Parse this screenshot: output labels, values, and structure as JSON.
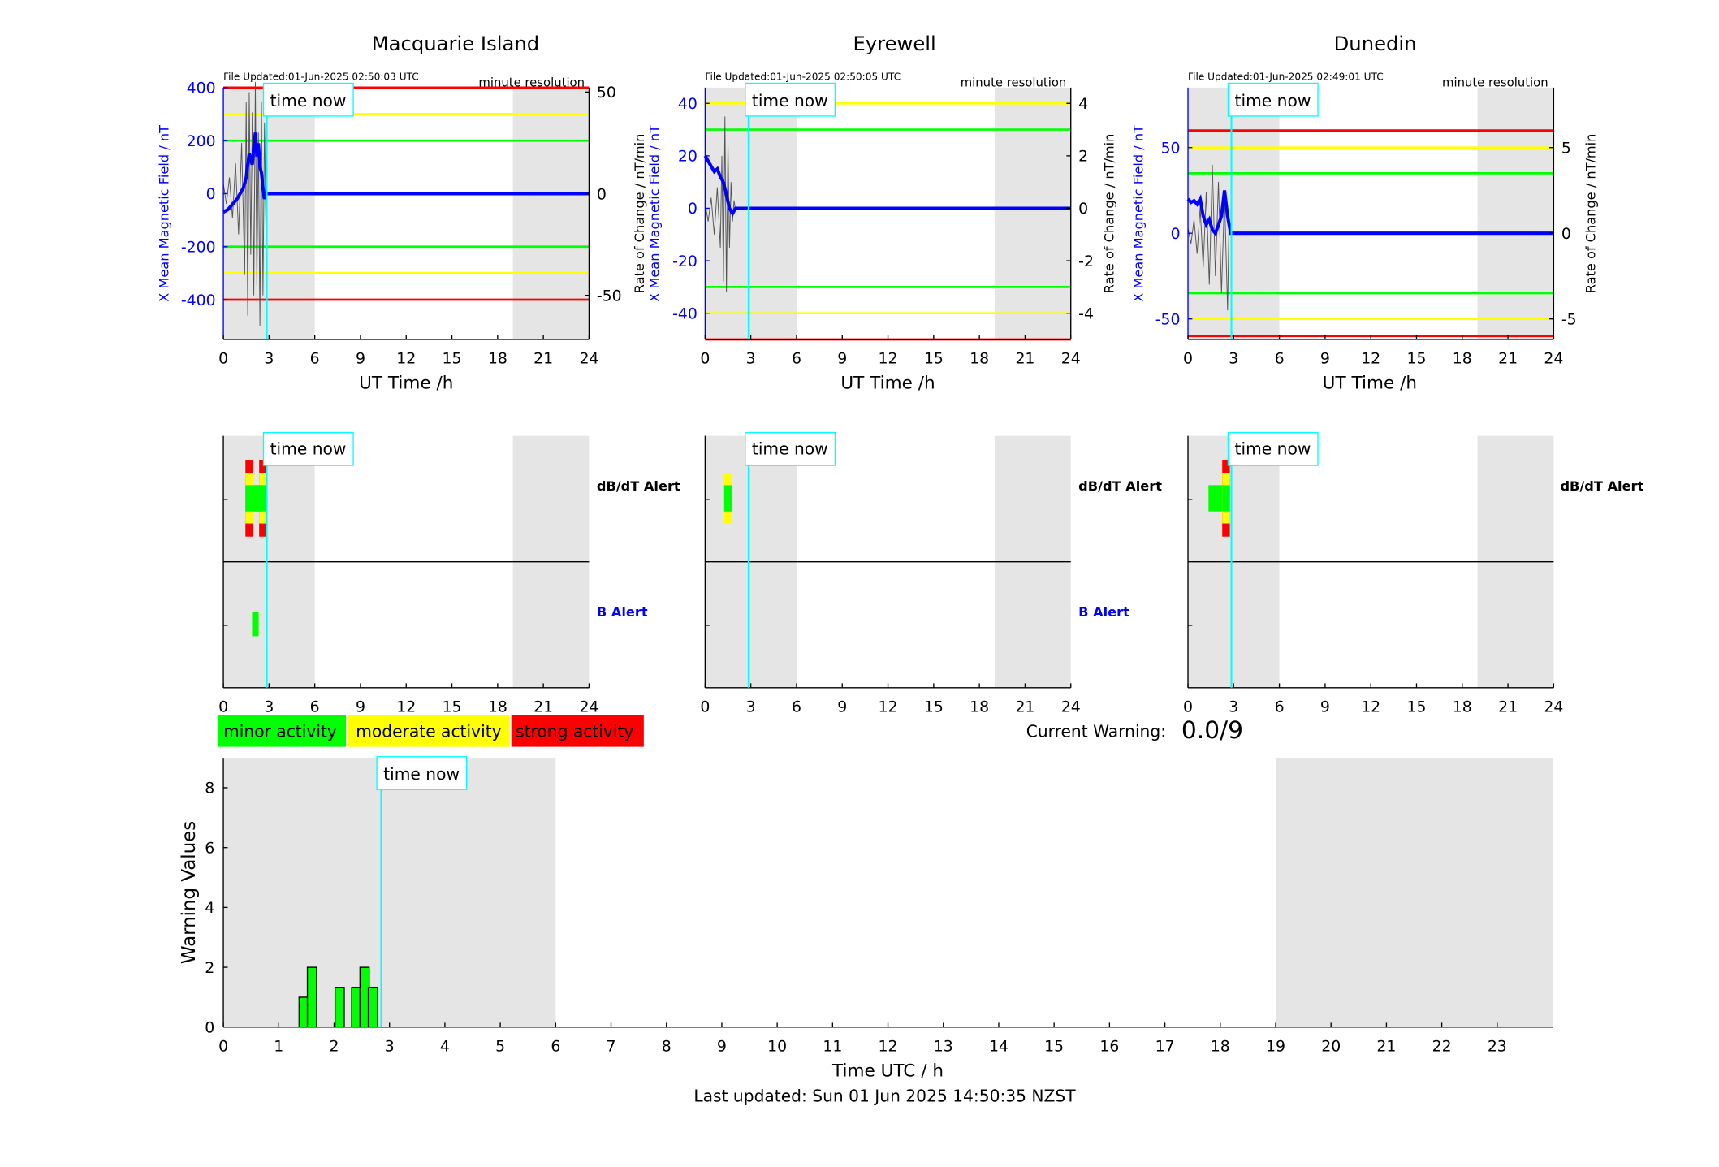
{
  "common": {
    "time_now_label": "time now",
    "resolution_label": "minute resolution",
    "x_axis_label": "UT Time /h",
    "left_axis_label": "X Mean Magnetic Field / nT",
    "right_axis_label": "Rate of Change / nT/min",
    "dbdt_alert_label": "dB/dT Alert",
    "b_alert_label": "B Alert",
    "x_ticks": [
      "0",
      "3",
      "6",
      "9",
      "12",
      "15",
      "18",
      "21",
      "24"
    ],
    "now_hour": 2.85,
    "shade_ranges": [
      [
        0,
        6
      ],
      [
        19,
        24
      ]
    ]
  },
  "stations": [
    {
      "title": "Macquarie Island",
      "file_updated": "File Updated:01-Jun-2025 02:50:03 UTC",
      "y_ticks_left": [
        "400",
        "200",
        "0",
        "-200",
        "-400"
      ],
      "y_ticks_right": [
        "50",
        "0",
        "-50"
      ],
      "chart_data": {
        "type": "line",
        "xlim": [
          0,
          24
        ],
        "ylim": [
          -550,
          400
        ],
        "ylim_right": [
          -71.7,
          52.2
        ],
        "threshold_lines": {
          "red": 400,
          "yellow": 300,
          "green": 200
        },
        "series": [
          {
            "x": [
              0,
              0.3,
              0.6,
              0.9,
              1.1,
              1.3,
              1.5,
              1.6,
              1.7,
              1.8,
              1.9,
              2.0,
              2.1,
              2.2,
              2.3,
              2.4,
              2.5,
              2.6,
              2.7,
              2.8,
              24
            ],
            "y": [
              -70,
              -60,
              -40,
              -20,
              0,
              20,
              60,
              110,
              150,
              130,
              110,
              180,
              230,
              140,
              190,
              100,
              80,
              20,
              -20,
              0,
              0
            ]
          },
          {
            "x": [
              0,
              0.2,
              0.4,
              0.6,
              0.8,
              1.0,
              1.2,
              1.4,
              1.5,
              1.6,
              1.7,
              1.8,
              1.9,
              2.0,
              2.1,
              2.2,
              2.3,
              2.4,
              2.5,
              2.6,
              2.7,
              2.8
            ],
            "y": [
              5,
              -5,
              8,
              -12,
              15,
              -20,
              25,
              -40,
              45,
              -60,
              50,
              -30,
              40,
              -50,
              55,
              -45,
              30,
              -65,
              45,
              -50,
              35,
              -20
            ]
          }
        ]
      },
      "alerts": {
        "dbdt": [
          {
            "hour": 1.7,
            "level": 3
          },
          {
            "hour": 2.6,
            "level": 3
          },
          {
            "hour": 2.1,
            "level": 1
          },
          {
            "hour": 2.3,
            "level": 1
          }
        ],
        "b": [
          {
            "hour": 2.1,
            "level": 1
          }
        ]
      }
    },
    {
      "title": "Eyrewell",
      "file_updated": "File Updated:01-Jun-2025 02:50:05 UTC",
      "y_ticks_left": [
        "40",
        "20",
        "0",
        "-20",
        "-40"
      ],
      "y_ticks_right": [
        "4",
        "2",
        "0",
        "-2",
        "-4"
      ],
      "chart_data": {
        "type": "line",
        "xlim": [
          0,
          24
        ],
        "ylim": [
          -50,
          46
        ],
        "ylim_right": [
          -5,
          4.6
        ],
        "threshold_lines": {
          "red": 50,
          "yellow": 40,
          "green": 30
        },
        "series": [
          {
            "x": [
              0,
              0.2,
              0.4,
              0.6,
              0.8,
              1.0,
              1.2,
              1.4,
              1.6,
              1.8,
              2.0,
              24
            ],
            "y": [
              20,
              18,
              16,
              14,
              15,
              12,
              10,
              5,
              0,
              -2,
              0,
              0
            ]
          },
          {
            "x": [
              0,
              0.2,
              0.4,
              0.6,
              0.8,
              1.0,
              1.1,
              1.2,
              1.3,
              1.4,
              1.5,
              1.6,
              1.7,
              1.8,
              1.9,
              2.0
            ],
            "y": [
              0.2,
              -0.5,
              0.4,
              -1,
              0.8,
              -1.5,
              2,
              -2.8,
              3.5,
              -3.2,
              2.5,
              -1.5,
              1,
              -0.5,
              0.3,
              -0.1
            ]
          }
        ]
      },
      "alerts": {
        "dbdt": [
          {
            "hour": 1.5,
            "level": 2
          }
        ],
        "b": []
      }
    },
    {
      "title": "Dunedin",
      "file_updated": "File Updated:01-Jun-2025 02:49:01 UTC",
      "y_ticks_left": [
        "50",
        "0",
        "-50"
      ],
      "y_ticks_right": [
        "5",
        "0",
        "-5"
      ],
      "chart_data": {
        "type": "line",
        "xlim": [
          0,
          24
        ],
        "ylim": [
          -62,
          85
        ],
        "ylim_right": [
          -6.2,
          8.5
        ],
        "threshold_lines": {
          "red": 60,
          "yellow": 50,
          "green": 35
        },
        "series": [
          {
            "x": [
              0,
              0.2,
              0.4,
              0.6,
              0.8,
              1.0,
              1.2,
              1.4,
              1.6,
              1.8,
              2.0,
              2.2,
              2.4,
              2.6,
              2.8,
              24
            ],
            "y": [
              20,
              18,
              19,
              17,
              20,
              10,
              5,
              8,
              2,
              0,
              5,
              10,
              25,
              10,
              0,
              0
            ]
          },
          {
            "x": [
              0,
              0.2,
              0.4,
              0.6,
              0.8,
              1.0,
              1.2,
              1.4,
              1.6,
              1.8,
              2.0,
              2.2,
              2.4,
              2.6,
              2.7
            ],
            "y": [
              0.3,
              -0.6,
              0.8,
              -1.2,
              1.5,
              -2,
              2.4,
              -3,
              4,
              -2.5,
              3,
              -3.5,
              2.2,
              -4.5,
              1
            ]
          }
        ]
      },
      "alerts": {
        "dbdt": [
          {
            "hour": 1.6,
            "level": 1
          },
          {
            "hour": 2.0,
            "level": 1
          },
          {
            "hour": 2.5,
            "level": 3
          }
        ],
        "b": []
      }
    }
  ],
  "legend": [
    {
      "label": "minor activity",
      "color": "#00ff00"
    },
    {
      "label": "moderate activity",
      "color": "#ffff00"
    },
    {
      "label": "strong activity",
      "color": "#ff0000"
    }
  ],
  "current_warning": {
    "label": "Current Warning:",
    "value": "0.0/9"
  },
  "warning_chart": {
    "chart_data": {
      "type": "bar",
      "xlabel": "Time UTC / h",
      "ylabel": "Warning Values",
      "xlim": [
        0,
        24
      ],
      "ylim": [
        0,
        9
      ],
      "x_ticks": [
        "0",
        "1",
        "2",
        "3",
        "4",
        "5",
        "6",
        "7",
        "8",
        "9",
        "10",
        "11",
        "12",
        "13",
        "14",
        "15",
        "16",
        "17",
        "18",
        "19",
        "20",
        "21",
        "22",
        "23"
      ],
      "y_ticks": [
        "0",
        "2",
        "4",
        "6",
        "8"
      ],
      "bar_width_h": 0.166,
      "x": [
        1.45,
        1.6,
        2.1,
        2.4,
        2.55,
        2.7
      ],
      "values": [
        1,
        2,
        1.33,
        1.33,
        2,
        1.33
      ]
    }
  },
  "colors": {
    "red": "#ff0000",
    "yellow": "#ffff00",
    "green": "#00ff00",
    "blue_field": "#0000ff",
    "now_line": "#00ffff",
    "shade": "#e5e5e5"
  },
  "footer": {
    "last_updated": "Last updated: Sun 01 Jun 2025 14:50:35 NZST"
  }
}
